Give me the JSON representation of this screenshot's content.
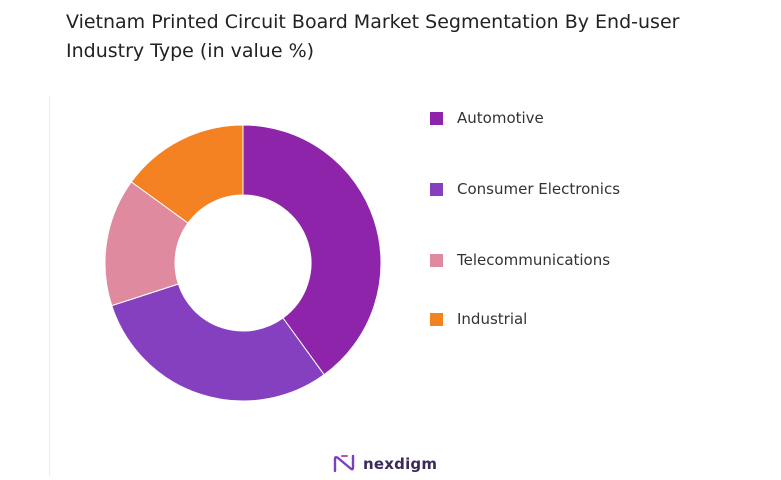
{
  "chart_data": {
    "type": "pie",
    "variant": "donut",
    "title": "Vietnam Printed Circuit Board Market Segmentation By End-user Industry Type (in value %)",
    "categories": [
      "Automotive",
      "Consumer Electronics",
      "Telecommunications",
      "Industrial"
    ],
    "values": [
      40,
      30,
      15,
      15
    ],
    "colors": [
      "#8e24aa",
      "#8540c0",
      "#df8a9f",
      "#f58222"
    ],
    "legend": "right"
  },
  "brand": {
    "name": "nexdigm",
    "icon": "nexdigm-logo-icon"
  }
}
